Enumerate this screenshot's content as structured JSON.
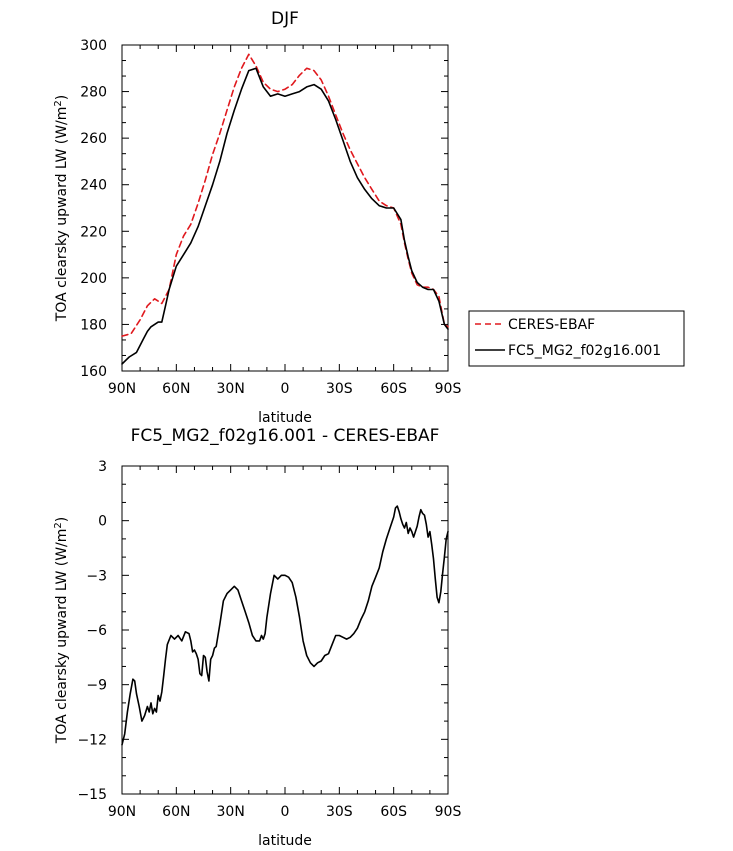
{
  "chart_data": [
    {
      "type": "line",
      "title": "DJF",
      "xlabel": "latitude",
      "ylabel_prefix": "TOA clearsky upward LW (W/m",
      "ylabel_sup": "2",
      "ylabel_suffix": ")",
      "xlim": [
        90,
        -90
      ],
      "ylim": [
        160,
        300
      ],
      "xticks": [
        {
          "value": 90,
          "label": "90N"
        },
        {
          "value": 60,
          "label": "60N"
        },
        {
          "value": 30,
          "label": "30N"
        },
        {
          "value": 0,
          "label": "0"
        },
        {
          "value": -30,
          "label": "30S"
        },
        {
          "value": -60,
          "label": "60S"
        },
        {
          "value": -90,
          "label": "90S"
        }
      ],
      "yticks": [
        {
          "value": 160,
          "label": "160"
        },
        {
          "value": 180,
          "label": "180"
        },
        {
          "value": 200,
          "label": "200"
        },
        {
          "value": 220,
          "label": "220"
        },
        {
          "value": 240,
          "label": "240"
        },
        {
          "value": 260,
          "label": "260"
        },
        {
          "value": 280,
          "label": "280"
        },
        {
          "value": 300,
          "label": "300"
        }
      ],
      "legend": {
        "placement": "right"
      },
      "series": [
        {
          "name": "CERES-EBAF",
          "color": "#e0191e",
          "dash": "dashed",
          "x": [
            90,
            85,
            80,
            76,
            72,
            68,
            64,
            60,
            56,
            52,
            48,
            44,
            40,
            36,
            32,
            28,
            24,
            20,
            16,
            12,
            8,
            4,
            0,
            -4,
            -8,
            -12,
            -16,
            -20,
            -24,
            -28,
            -32,
            -36,
            -40,
            -44,
            -48,
            -52,
            -56,
            -60,
            -64,
            -66,
            -68,
            -70,
            -73,
            -76,
            -79,
            -82,
            -85,
            -88,
            -90
          ],
          "values": [
            175,
            176,
            182,
            188,
            191,
            189,
            195,
            210,
            218,
            223,
            232,
            242,
            253,
            262,
            272,
            282,
            290,
            296,
            291,
            284,
            281,
            280,
            281,
            283,
            287,
            290,
            289,
            285,
            278,
            270,
            262,
            255,
            249,
            243,
            238,
            233,
            231,
            230,
            223,
            215,
            208,
            202,
            197,
            196,
            196,
            195,
            192,
            180,
            179
          ]
        },
        {
          "name": "FC5_MG2_f02g16.001",
          "color": "#000000",
          "dash": "solid",
          "x": [
            90,
            86,
            82,
            78,
            76,
            74,
            72,
            70,
            68,
            66,
            64,
            60,
            56,
            52,
            48,
            44,
            40,
            36,
            32,
            28,
            24,
            20,
            16,
            12,
            8,
            4,
            0,
            -4,
            -8,
            -12,
            -16,
            -20,
            -24,
            -28,
            -32,
            -36,
            -40,
            -44,
            -48,
            -52,
            -56,
            -60,
            -64,
            -66,
            -68,
            -70,
            -73,
            -76,
            -79,
            -82,
            -85,
            -88,
            -90
          ],
          "values": [
            163,
            166,
            168,
            174,
            177,
            179,
            180,
            181,
            181,
            188,
            195,
            205,
            210,
            215,
            222,
            231,
            240,
            250,
            262,
            272,
            281,
            289,
            290,
            282,
            278,
            279,
            278,
            279,
            280,
            282,
            283,
            281,
            276,
            268,
            259,
            250,
            243,
            238,
            234,
            231,
            230,
            230,
            225,
            216,
            209,
            203,
            198,
            196,
            195,
            195,
            190,
            180,
            178
          ]
        }
      ]
    },
    {
      "type": "line",
      "title": "FC5_MG2_f02g16.001 - CERES-EBAF",
      "xlabel": "latitude",
      "ylabel_prefix": "TOA clearsky upward LW (W/m",
      "ylabel_sup": "2",
      "ylabel_suffix": ")",
      "xlim": [
        90,
        -90
      ],
      "ylim": [
        -15,
        3
      ],
      "xticks": [
        {
          "value": 90,
          "label": "90N"
        },
        {
          "value": 60,
          "label": "60N"
        },
        {
          "value": 30,
          "label": "30N"
        },
        {
          "value": 0,
          "label": "0"
        },
        {
          "value": -30,
          "label": "30S"
        },
        {
          "value": -60,
          "label": "60S"
        },
        {
          "value": -90,
          "label": "90S"
        }
      ],
      "yticks": [
        {
          "value": 3,
          "label": "3"
        },
        {
          "value": 0,
          "label": "0"
        },
        {
          "value": -3,
          "label": "−3"
        },
        {
          "value": -6,
          "label": "−6"
        },
        {
          "value": -9,
          "label": "−9"
        },
        {
          "value": -12,
          "label": "−12"
        },
        {
          "value": -15,
          "label": "−15"
        }
      ],
      "series": [
        {
          "name": "FC5_MG2_f02g16.001 - CERES-EBAF",
          "color": "#000000",
          "dash": "solid",
          "x": [
            90,
            88.5,
            87,
            85.5,
            84,
            83,
            82,
            80.5,
            79,
            77.5,
            76,
            75,
            74,
            73,
            72,
            71,
            70,
            69,
            68,
            67,
            66,
            65,
            63,
            61,
            59,
            57,
            55,
            53,
            52,
            51,
            50,
            49,
            48,
            47,
            46,
            45,
            44,
            43,
            42,
            41,
            40,
            39,
            38,
            36,
            34,
            32,
            30,
            28,
            26,
            24,
            22,
            20,
            18,
            16,
            14,
            13,
            12,
            11,
            10,
            8,
            6,
            4,
            2,
            0,
            -2,
            -4,
            -6,
            -8,
            -10,
            -12,
            -14,
            -16,
            -18,
            -20,
            -22,
            -24,
            -26,
            -28,
            -30,
            -32,
            -34,
            -36,
            -38,
            -40,
            -42,
            -44,
            -46,
            -48,
            -50,
            -52,
            -54,
            -56,
            -58,
            -60,
            -61,
            -62,
            -63,
            -64,
            -65,
            -66,
            -67,
            -68,
            -69,
            -70,
            -71,
            -72,
            -73,
            -74,
            -75,
            -76,
            -77,
            -78,
            -79,
            -80,
            -81,
            -82,
            -83,
            -84,
            -85,
            -86,
            -87,
            -88,
            -89,
            -90
          ],
          "values": [
            -12.3,
            -11.7,
            -10.5,
            -9.5,
            -8.7,
            -8.8,
            -9.5,
            -10.2,
            -11.0,
            -10.7,
            -10.2,
            -10.5,
            -10.0,
            -10.6,
            -10.3,
            -10.5,
            -9.6,
            -9.9,
            -9.4,
            -8.5,
            -7.6,
            -6.8,
            -6.3,
            -6.5,
            -6.3,
            -6.6,
            -6.1,
            -6.2,
            -6.6,
            -7.2,
            -7.1,
            -7.3,
            -7.6,
            -8.4,
            -8.5,
            -7.4,
            -7.5,
            -8.3,
            -8.8,
            -7.6,
            -7.4,
            -7.0,
            -6.9,
            -5.7,
            -4.4,
            -4.0,
            -3.8,
            -3.6,
            -3.8,
            -4.4,
            -5.0,
            -5.6,
            -6.3,
            -6.6,
            -6.6,
            -6.3,
            -6.5,
            -6.2,
            -5.3,
            -4.0,
            -3.0,
            -3.2,
            -3.0,
            -3.0,
            -3.1,
            -3.4,
            -4.2,
            -5.3,
            -6.6,
            -7.4,
            -7.8,
            -8.0,
            -7.8,
            -7.7,
            -7.4,
            -7.3,
            -6.8,
            -6.3,
            -6.3,
            -6.4,
            -6.5,
            -6.4,
            -6.2,
            -5.9,
            -5.4,
            -5.0,
            -4.4,
            -3.6,
            -3.1,
            -2.6,
            -1.7,
            -1.0,
            -0.4,
            0.2,
            0.7,
            0.8,
            0.5,
            0.1,
            -0.2,
            -0.4,
            -0.1,
            -0.7,
            -0.4,
            -0.6,
            -0.9,
            -0.6,
            -0.3,
            0.2,
            0.6,
            0.4,
            0.3,
            -0.2,
            -0.9,
            -0.6,
            -1.3,
            -2.1,
            -3.2,
            -4.2,
            -4.5,
            -3.9,
            -2.9,
            -2.0,
            -1.0,
            -0.6
          ]
        }
      ]
    }
  ]
}
